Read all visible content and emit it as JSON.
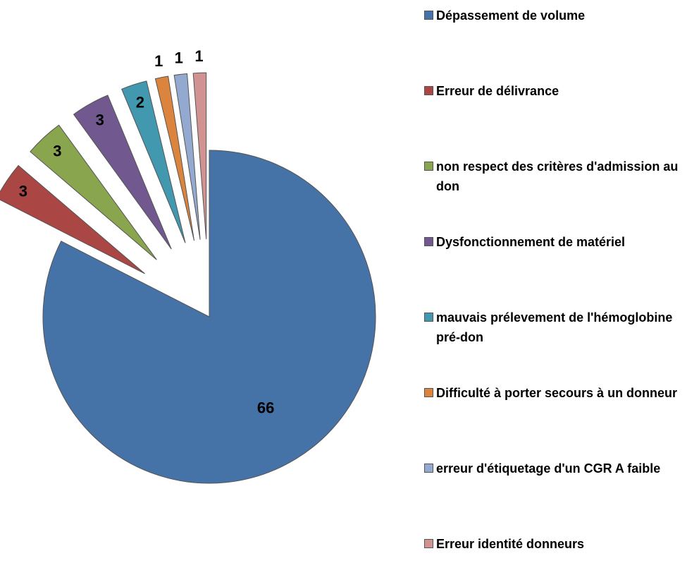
{
  "chart_data": {
    "type": "pie",
    "categories": [
      "Dépassement de volume",
      "Erreur de délivrance",
      "non respect des critères d'admission au don",
      "Dysfonctionnement de matériel",
      "mauvais prélevement de l'hémoglobine pré-don",
      "Difficulté à porter secours à un donneur",
      "erreur d'étiquetage d'un CGR A faible",
      "Erreur identité donneurs"
    ],
    "values": [
      66,
      3,
      3,
      3,
      2,
      1,
      1,
      1
    ],
    "colors": [
      "#4572a7",
      "#aa4643",
      "#89a54e",
      "#71588f",
      "#4198af",
      "#db843d",
      "#93a9cf",
      "#d19392"
    ],
    "legend": "right"
  }
}
